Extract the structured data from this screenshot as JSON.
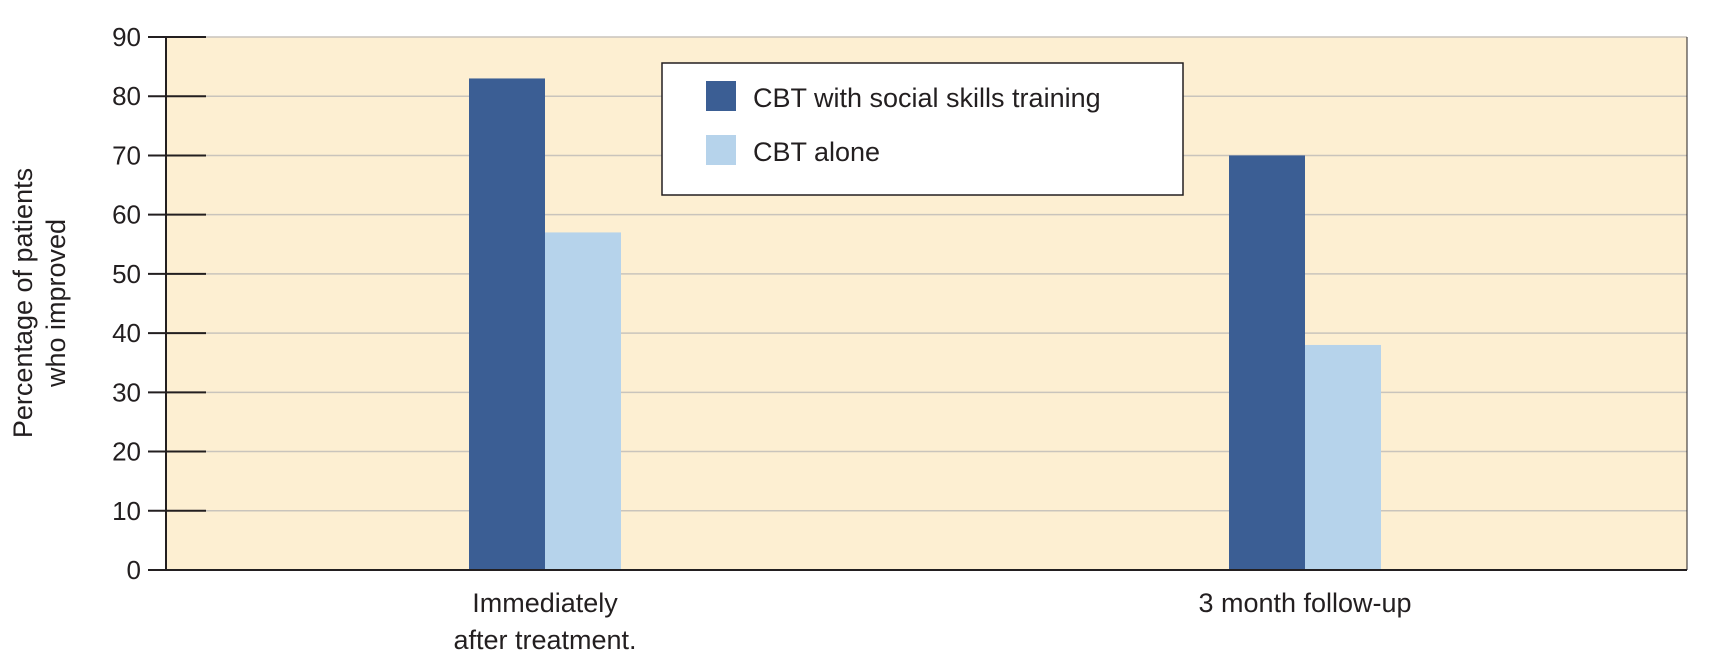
{
  "chart_data": {
    "type": "bar",
    "title": "",
    "xlabel": "",
    "ylabel_lines": [
      "Percentage of patients",
      "who improved"
    ],
    "ylim": [
      0,
      90
    ],
    "yticks": [
      0,
      10,
      20,
      30,
      40,
      50,
      60,
      70,
      80,
      90
    ],
    "grid": true,
    "legend_position": "top-center",
    "categories": [
      [
        "Immediately",
        "after treatment."
      ],
      [
        "3 month follow-up"
      ]
    ],
    "series": [
      {
        "name": "CBT with social skills training",
        "values": [
          83,
          70
        ],
        "color": "#3b5e94"
      },
      {
        "name": "CBT alone",
        "values": [
          57,
          38
        ],
        "color": "#b6d3eb"
      }
    ],
    "colors": {
      "plot_background": "#fdefd2",
      "gridline": "#c9c4bc",
      "axis": "#231f20"
    }
  }
}
